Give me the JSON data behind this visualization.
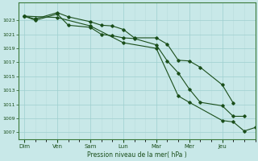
{
  "title": "Pression niveau de la mer( hPa )",
  "background_color": "#c8e8e8",
  "line_color": "#1a4e1a",
  "ylim": [
    1006.0,
    1025.5
  ],
  "yticks": [
    1007,
    1009,
    1011,
    1013,
    1015,
    1017,
    1019,
    1021,
    1023
  ],
  "day_labels": [
    "Dim",
    "Ven",
    "Sam",
    "Lun",
    "Mar",
    "Mer",
    "Jeu"
  ],
  "day_x": [
    0,
    36,
    72,
    108,
    144,
    180,
    216
  ],
  "xlim": [
    -6,
    252
  ],
  "grid_minor_x": 12,
  "line1_x": [
    0,
    12,
    36,
    48,
    72,
    84,
    96,
    108,
    120,
    144,
    156,
    168,
    180,
    192,
    216,
    228
  ],
  "line1_y": [
    1023.6,
    1023.2,
    1024.1,
    1023.5,
    1022.8,
    1022.3,
    1022.2,
    1021.7,
    1020.5,
    1020.5,
    1019.6,
    1017.3,
    1017.2,
    1016.3,
    1013.8,
    1011.2
  ],
  "line2_x": [
    0,
    12,
    36,
    48,
    72,
    84,
    96,
    108,
    120,
    144,
    156,
    168,
    180,
    192,
    216,
    228,
    240
  ],
  "line2_y": [
    1023.6,
    1023.0,
    1023.9,
    1022.3,
    1022.0,
    1021.0,
    1020.8,
    1020.5,
    1020.4,
    1019.5,
    1017.2,
    1015.5,
    1013.2,
    1011.3,
    1010.8,
    1009.3,
    1009.3
  ],
  "line3_x": [
    0,
    36,
    72,
    108,
    144,
    168,
    180,
    216,
    228,
    240,
    252
  ],
  "line3_y": [
    1023.6,
    1023.4,
    1022.2,
    1019.8,
    1019.0,
    1012.2,
    1011.3,
    1008.7,
    1008.5,
    1007.2,
    1007.7
  ]
}
